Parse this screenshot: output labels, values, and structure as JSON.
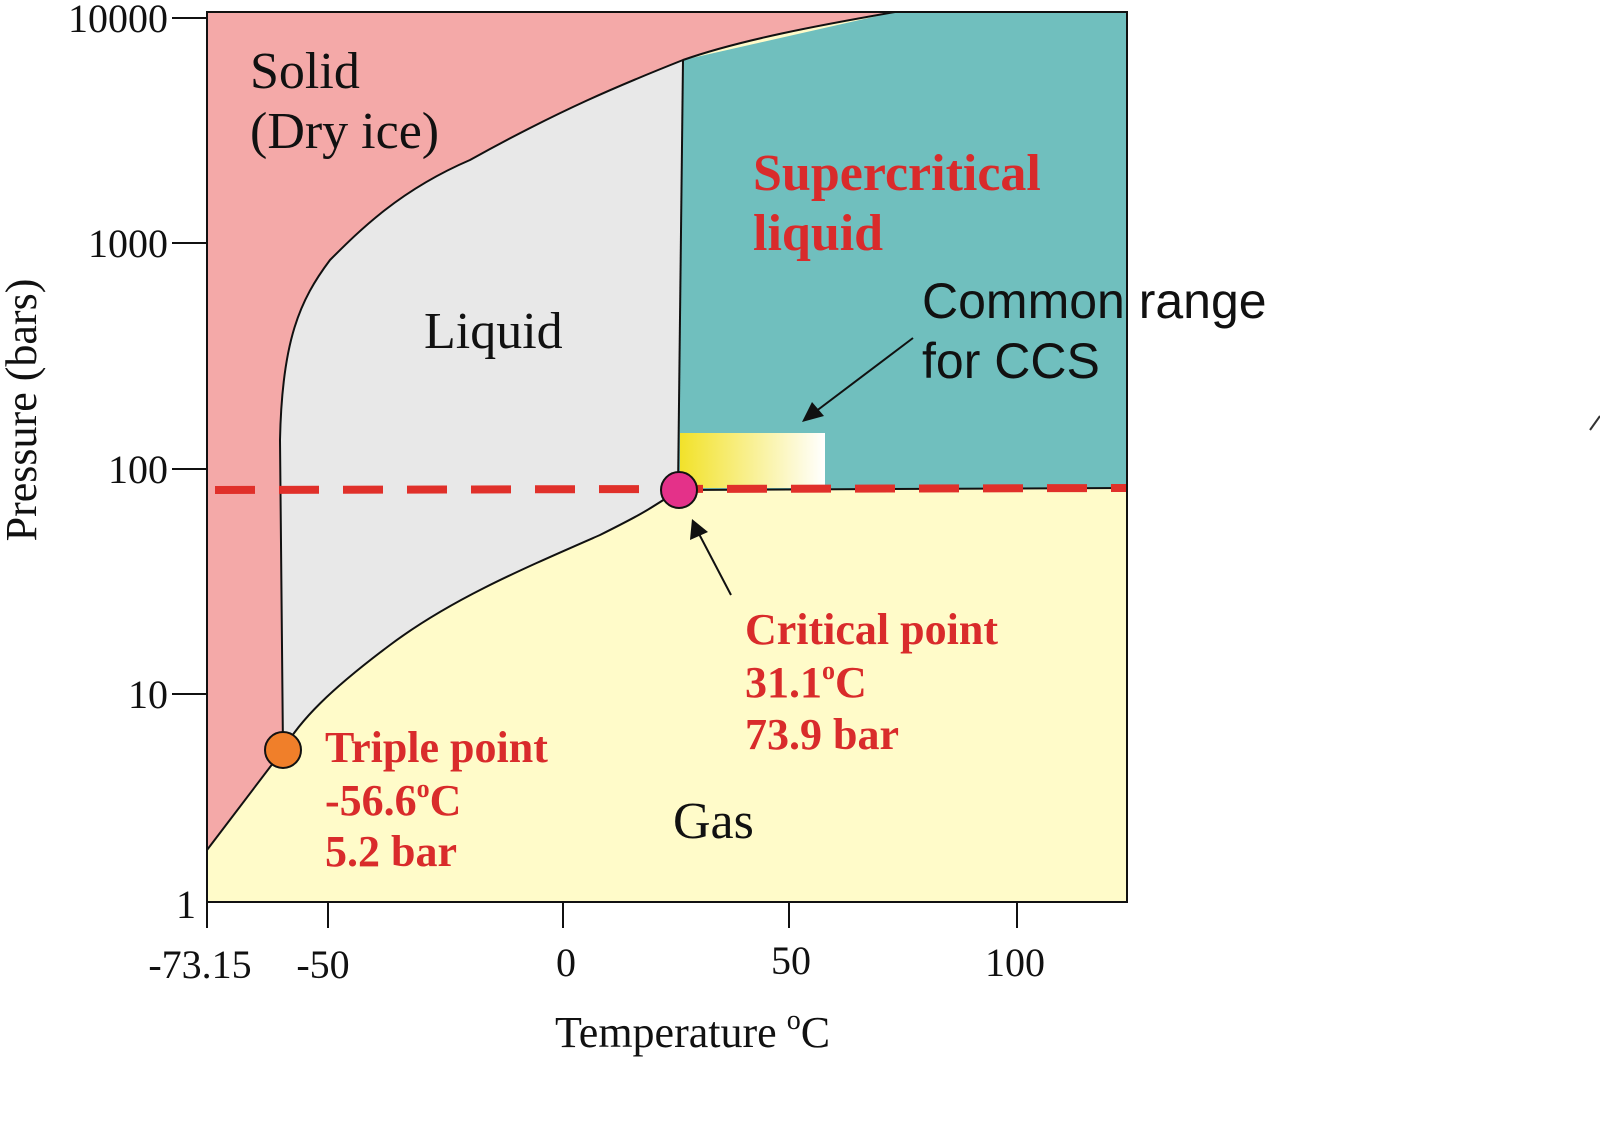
{
  "axes": {
    "x_title": "Temperature",
    "x_unit": "oC",
    "y_title": "Pressure (bars)",
    "x_ticks": [
      "-73.15",
      "-50",
      "0",
      "50",
      "100"
    ],
    "y_ticks": [
      "10000",
      "1000",
      "100",
      "10",
      "1"
    ]
  },
  "regions": {
    "solid_line1": "Solid",
    "solid_line2": "(Dry ice)",
    "liquid": "Liquid",
    "gas": "Gas",
    "supercritical_line1": "Supercritical",
    "supercritical_line2": "liquid"
  },
  "annotations": {
    "ccs_line1": "Common range",
    "ccs_line2": "for CCS",
    "triple_title": "Triple point",
    "triple_temp": "-56.6",
    "triple_temp_unit": "o",
    "triple_temp_c": "C",
    "triple_pressure": "5.2 bar",
    "critical_title": "Critical point",
    "critical_temp": "31.1",
    "critical_temp_unit": "o",
    "critical_temp_c": "C",
    "critical_pressure": "73.9 bar"
  },
  "colors": {
    "solid": "#f4a9a8",
    "liquid": "#e8e8e8",
    "gas": "#fffbc9",
    "supercritical": "#70bfbe",
    "dashed_line": "#e0302a",
    "triple_marker": "#f07f2a",
    "critical_marker": "#e43189",
    "ccs_box_start": "#f2e22a",
    "ccs_box_end": "#ffffff"
  }
}
